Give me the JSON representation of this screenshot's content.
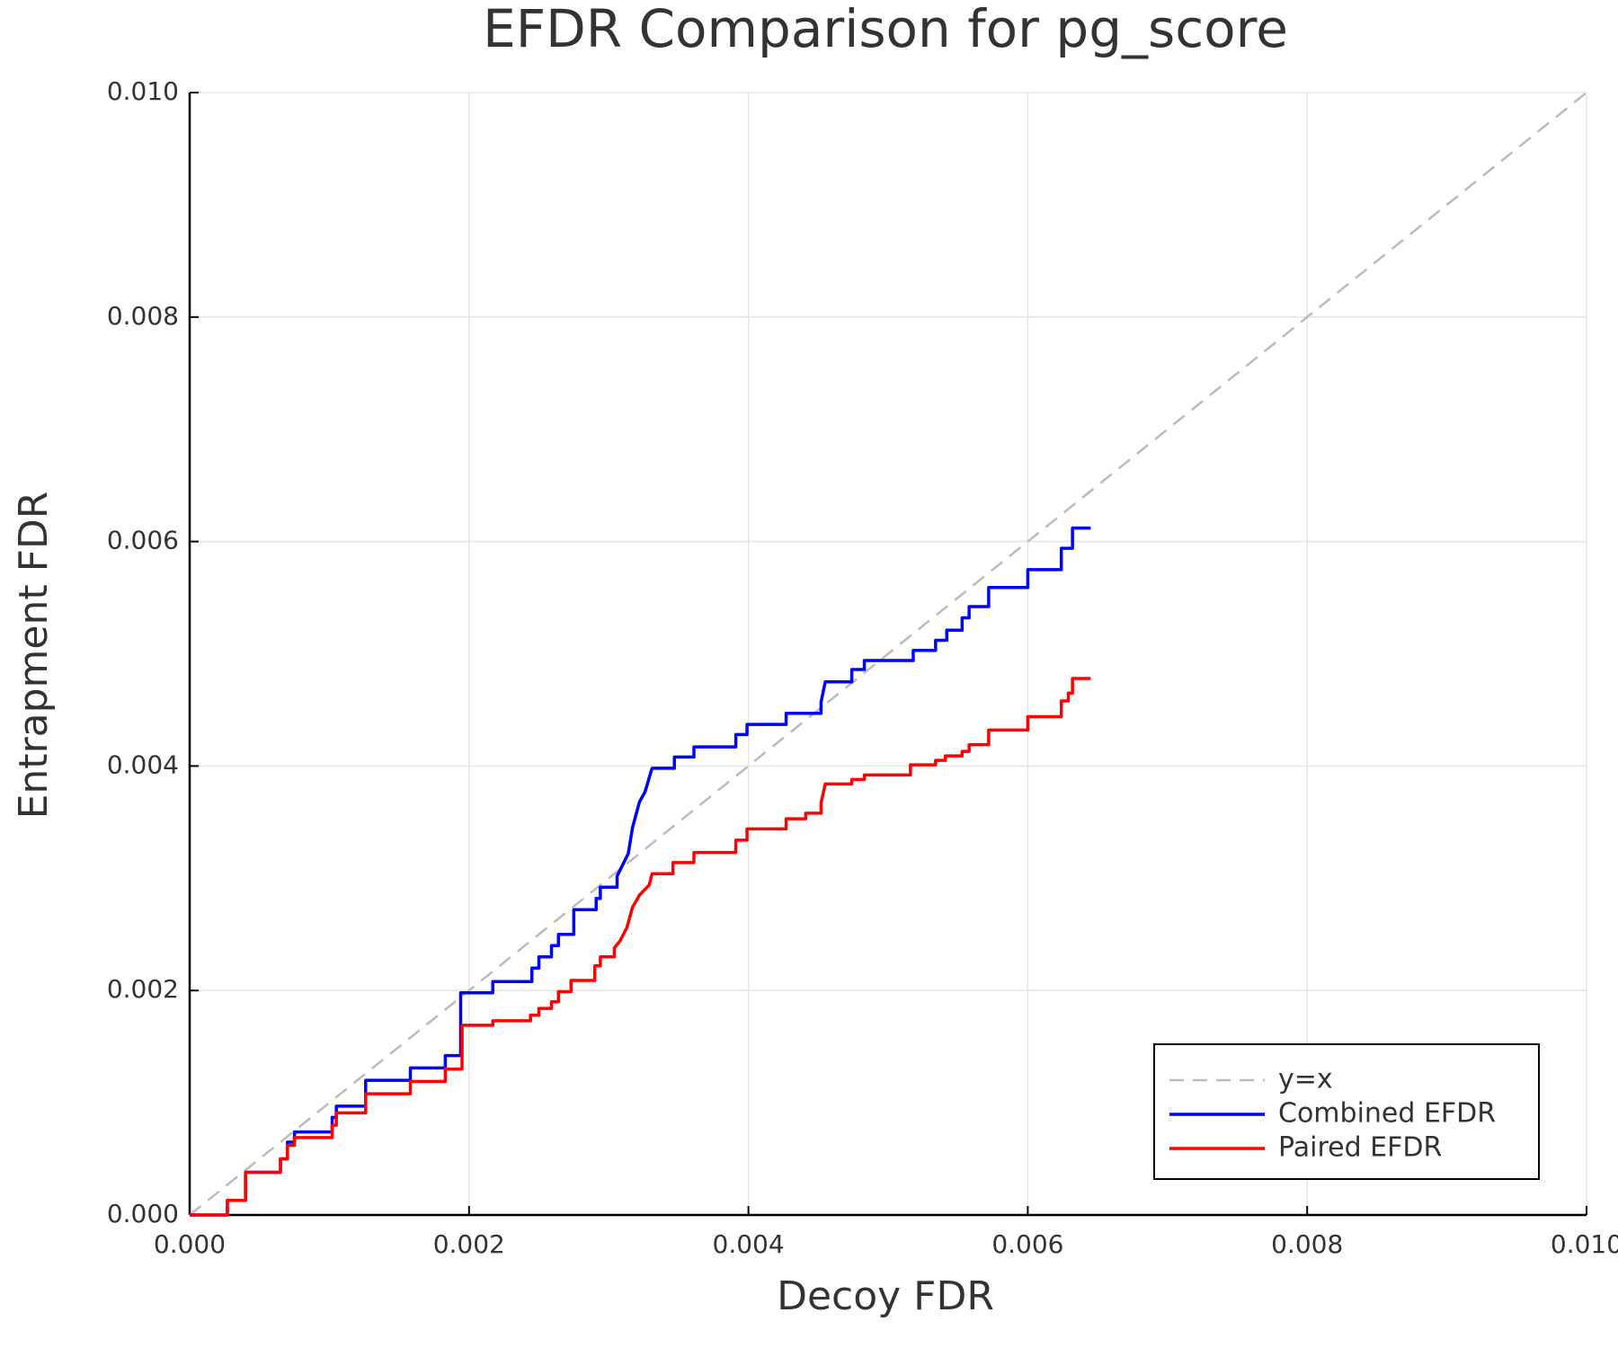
{
  "chart_data": {
    "type": "line",
    "title": "EFDR Comparison for pg_score",
    "x_label": "Decoy FDR",
    "y_label": "Entrapment FDR",
    "xlim": [
      0,
      0.01
    ],
    "ylim": [
      0,
      0.01
    ],
    "xticks": [
      {
        "value": 0,
        "label": "0.000"
      },
      {
        "value": 0.002,
        "label": "0.002"
      },
      {
        "value": 0.004,
        "label": "0.004"
      },
      {
        "value": 0.006,
        "label": "0.006"
      },
      {
        "value": 0.008,
        "label": "0.008"
      },
      {
        "value": 0.01,
        "label": "0.010"
      }
    ],
    "yticks": [
      {
        "value": 0,
        "label": "0.000"
      },
      {
        "value": 0.002,
        "label": "0.002"
      },
      {
        "value": 0.004,
        "label": "0.004"
      },
      {
        "value": 0.006,
        "label": "0.006"
      },
      {
        "value": 0.008,
        "label": "0.008"
      },
      {
        "value": 0.01,
        "label": "0.010"
      }
    ],
    "grid": true,
    "legend": "lower right",
    "series": [
      {
        "name": "y=x",
        "color": "#bbbbbb",
        "dashed": true,
        "x": [
          0,
          0.01
        ],
        "values": [
          0,
          0.01
        ]
      },
      {
        "name": "Combined EFDR",
        "color": "#0000ff",
        "dashed": false,
        "x": [
          0,
          0.00027,
          0.00027,
          0.0004,
          0.0004,
          0.00065,
          0.00065,
          0.0007,
          0.0007,
          0.00075,
          0.00075,
          0.00102,
          0.00102,
          0.00105,
          0.00105,
          0.00126,
          0.00126,
          0.00158,
          0.00158,
          0.00183,
          0.00183,
          0.00194,
          0.00194,
          0.00217,
          0.00217,
          0.00245,
          0.00245,
          0.0025,
          0.0025,
          0.00259,
          0.00259,
          0.00264,
          0.00264,
          0.00275,
          0.00275,
          0.00291,
          0.00291,
          0.00294,
          0.00294,
          0.00306,
          0.00306,
          0.0031,
          0.00314,
          0.00317,
          0.00322,
          0.00326,
          0.00331,
          0.00347,
          0.00347,
          0.00361,
          0.00361,
          0.00391,
          0.00391,
          0.00399,
          0.00399,
          0.00427,
          0.00427,
          0.00452,
          0.00452,
          0.00455,
          0.00474,
          0.00474,
          0.00483,
          0.00483,
          0.00518,
          0.00518,
          0.00534,
          0.00534,
          0.00542,
          0.00542,
          0.00553,
          0.00553,
          0.00558,
          0.00558,
          0.00572,
          0.00572,
          0.006,
          0.006,
          0.00624,
          0.00624,
          0.00632,
          0.00632,
          0.00645
        ],
        "values": [
          0,
          0,
          0.00013,
          0.00013,
          0.00038,
          0.00038,
          0.0005,
          0.0005,
          0.00065,
          0.00065,
          0.00074,
          0.00074,
          0.00087,
          0.00087,
          0.00097,
          0.00097,
          0.0012,
          0.0012,
          0.00131,
          0.00131,
          0.00142,
          0.00142,
          0.00198,
          0.00198,
          0.00208,
          0.00208,
          0.0022,
          0.0022,
          0.0023,
          0.0023,
          0.0024,
          0.0024,
          0.0025,
          0.0025,
          0.00272,
          0.00272,
          0.00282,
          0.00282,
          0.00292,
          0.00292,
          0.00302,
          0.00312,
          0.00322,
          0.00345,
          0.00368,
          0.00377,
          0.00398,
          0.00398,
          0.00408,
          0.00408,
          0.00417,
          0.00417,
          0.00428,
          0.00428,
          0.00437,
          0.00437,
          0.00447,
          0.00447,
          0.00457,
          0.00475,
          0.00475,
          0.00486,
          0.00486,
          0.00494,
          0.00494,
          0.00503,
          0.00503,
          0.00512,
          0.00512,
          0.00521,
          0.00521,
          0.00532,
          0.00532,
          0.00542,
          0.00542,
          0.00559,
          0.00559,
          0.00575,
          0.00575,
          0.00594,
          0.00594,
          0.00612,
          0.00612
        ]
      },
      {
        "name": "Paired EFDR",
        "color": "#ff0000",
        "dashed": false,
        "x": [
          0,
          0.00027,
          0.00027,
          0.0004,
          0.0004,
          0.00065,
          0.00065,
          0.0007,
          0.0007,
          0.00075,
          0.00075,
          0.00102,
          0.00102,
          0.00105,
          0.00105,
          0.00126,
          0.00126,
          0.00158,
          0.00158,
          0.00183,
          0.00183,
          0.00195,
          0.00195,
          0.00217,
          0.00217,
          0.00244,
          0.00244,
          0.0025,
          0.0025,
          0.00259,
          0.00259,
          0.00264,
          0.00264,
          0.00273,
          0.00273,
          0.0029,
          0.0029,
          0.00294,
          0.00294,
          0.00304,
          0.00304,
          0.00308,
          0.00313,
          0.00317,
          0.00322,
          0.00329,
          0.00331,
          0.00346,
          0.00346,
          0.00361,
          0.00361,
          0.00391,
          0.00391,
          0.00399,
          0.00399,
          0.00427,
          0.00427,
          0.00441,
          0.00441,
          0.00452,
          0.00452,
          0.00455,
          0.00474,
          0.00474,
          0.00483,
          0.00483,
          0.00516,
          0.00516,
          0.00534,
          0.00534,
          0.00541,
          0.00541,
          0.00553,
          0.00553,
          0.00558,
          0.00558,
          0.00572,
          0.00572,
          0.006,
          0.006,
          0.00624,
          0.00624,
          0.00629,
          0.00629,
          0.00632,
          0.00632,
          0.00645
        ],
        "values": [
          0,
          0,
          0.00013,
          0.00013,
          0.00038,
          0.00038,
          0.0005,
          0.0005,
          0.00062,
          0.00062,
          0.00069,
          0.00069,
          0.0008,
          0.0008,
          0.00091,
          0.00091,
          0.00108,
          0.00108,
          0.00119,
          0.00119,
          0.0013,
          0.0013,
          0.00169,
          0.00169,
          0.00173,
          0.00173,
          0.00178,
          0.00178,
          0.00184,
          0.00184,
          0.0019,
          0.0019,
          0.00199,
          0.00199,
          0.00209,
          0.00209,
          0.00222,
          0.00222,
          0.0023,
          0.0023,
          0.00238,
          0.00244,
          0.00256,
          0.00274,
          0.00285,
          0.00294,
          0.00304,
          0.00304,
          0.00314,
          0.00314,
          0.00323,
          0.00323,
          0.00334,
          0.00334,
          0.00344,
          0.00344,
          0.00353,
          0.00353,
          0.00358,
          0.00358,
          0.00367,
          0.00384,
          0.00384,
          0.00388,
          0.00388,
          0.00392,
          0.00392,
          0.00401,
          0.00401,
          0.00405,
          0.00405,
          0.00409,
          0.00409,
          0.00413,
          0.00413,
          0.00419,
          0.00419,
          0.00432,
          0.00432,
          0.00444,
          0.00444,
          0.00458,
          0.00458,
          0.00465,
          0.00465,
          0.00478,
          0.00478
        ]
      }
    ]
  }
}
